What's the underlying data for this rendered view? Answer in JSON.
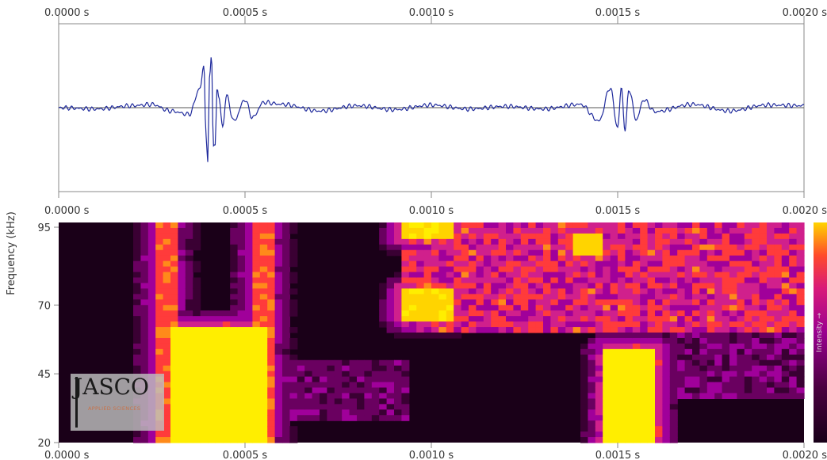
{
  "waveform": {
    "x_ticks": [
      "0.0000 s",
      "0.0005 s",
      "0.0010 s",
      "0.0015 s",
      "0.0020 s"
    ],
    "line_color": "#1f2a9c"
  },
  "spectrogram": {
    "x_ticks_top": [
      "0.0000 s",
      "0.0005 s",
      "0.0010 s",
      "0.0015 s",
      "0.0020 s"
    ],
    "x_ticks_bottom": [
      "0.0000 s",
      "0.0005 s",
      "0.0010 s",
      "0.0015 s",
      "0.0020 s"
    ],
    "ylabel": "Frequency (kHz)",
    "y_ticks": [
      "95",
      "70",
      "45",
      "20"
    ],
    "colorbar_label": "Intensity →",
    "colormap": [
      "#180018",
      "#3a0033",
      "#6a0060",
      "#a0009a",
      "#d0208c",
      "#ff3b3b",
      "#ff8a1a",
      "#ffd400",
      "#ffee00"
    ]
  },
  "watermark": {
    "logo": "JASCO",
    "tagline": "APPLIED SCIENCES"
  },
  "chart_data": [
    {
      "type": "line",
      "title": "",
      "xlabel": "",
      "ylabel": "",
      "xlim": [
        0.0,
        0.002
      ],
      "ylim": [
        -1.0,
        1.0
      ],
      "x_unit": "s",
      "grid": false,
      "series": [
        {
          "x": [
            0.0,
            0.0001,
            0.0002,
            0.00025,
            0.0003,
            0.00035,
            0.00038,
            0.00039,
            0.000395,
            0.0004,
            0.000405,
            0.00041,
            0.000415,
            0.00042,
            0.000425,
            0.00043,
            0.00044,
            0.00045,
            0.00047,
            0.0005,
            0.00052,
            0.00055,
            0.0006,
            0.0007,
            0.0008,
            0.0009,
            0.001,
            0.0011,
            0.0012,
            0.0013,
            0.0014,
            0.00145,
            0.00148,
            0.0015,
            0.00151,
            0.00152,
            0.00153,
            0.00155,
            0.00157,
            0.0016,
            0.0017,
            0.0018,
            0.0019,
            0.002
          ],
          "y": [
            0.0,
            -0.02,
            0.03,
            0.05,
            -0.05,
            -0.1,
            0.3,
            0.65,
            -0.4,
            -0.85,
            0.5,
            0.82,
            -0.6,
            -0.55,
            0.3,
            0.15,
            -0.3,
            0.18,
            -0.2,
            0.12,
            -0.15,
            0.08,
            0.05,
            -0.05,
            0.03,
            -0.03,
            0.04,
            -0.02,
            0.02,
            -0.02,
            0.05,
            -0.2,
            0.3,
            -0.3,
            0.3,
            -0.35,
            0.28,
            -0.18,
            0.12,
            -0.06,
            0.05,
            -0.05,
            0.04,
            0.03
          ]
        }
      ]
    },
    {
      "type": "heatmap",
      "title": "",
      "xlabel": "",
      "ylabel": "Frequency (kHz)",
      "xlim": [
        0.0,
        0.002
      ],
      "ylim": [
        20,
        100
      ],
      "y_ticks": [
        95,
        70,
        45,
        20
      ],
      "x_unit": "s",
      "colorbar": "Intensity",
      "regions": [
        {
          "t0": 0.0003,
          "t1": 0.00055,
          "f0": 20,
          "f1": 62,
          "level": 1.0
        },
        {
          "t0": 0.00026,
          "t1": 0.00031,
          "f0": 20,
          "f1": 100,
          "level": 0.7
        },
        {
          "t0": 0.00052,
          "t1": 0.00057,
          "f0": 20,
          "f1": 100,
          "level": 0.7
        },
        {
          "t0": 0.00092,
          "t1": 0.00106,
          "f0": 65,
          "f1": 75,
          "level": 0.95
        },
        {
          "t0": 0.00092,
          "t1": 0.00106,
          "f0": 94,
          "f1": 100,
          "level": 0.95
        },
        {
          "t0": 0.00147,
          "t1": 0.0016,
          "f0": 20,
          "f1": 54,
          "level": 1.0
        },
        {
          "t0": 0.00138,
          "t1": 0.00145,
          "f0": 88,
          "f1": 96,
          "level": 0.9
        }
      ]
    }
  ]
}
